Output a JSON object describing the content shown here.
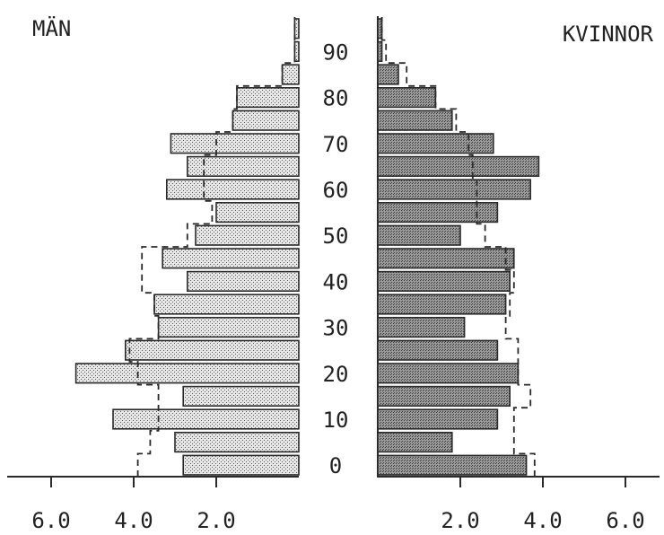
{
  "chart_data": {
    "type": "bar",
    "subtype": "population-pyramid",
    "left_label": "MÄN",
    "right_label": "KVINNOR",
    "age_tick_labels": [
      "0",
      "10",
      "20",
      "30",
      "40",
      "50",
      "60",
      "70",
      "80",
      "90"
    ],
    "left_axis_ticks": [
      "6.0",
      "4.0",
      "2.0"
    ],
    "right_axis_ticks": [
      "2.0",
      "4.0",
      "6.0"
    ],
    "xlim": [
      0,
      7
    ],
    "age_groups": [
      0,
      5,
      10,
      15,
      20,
      25,
      30,
      35,
      40,
      45,
      50,
      55,
      60,
      65,
      70,
      75,
      80,
      85,
      90,
      95
    ],
    "series": [
      {
        "name": "MÄN",
        "values": [
          2.8,
          3.0,
          4.5,
          2.8,
          5.4,
          4.2,
          3.4,
          3.5,
          2.7,
          3.3,
          2.5,
          2.0,
          3.2,
          2.7,
          3.1,
          1.6,
          1.5,
          0.4,
          0.1,
          0.1
        ],
        "reference": [
          3.9,
          3.6,
          3.4,
          3.4,
          3.9,
          4.1,
          3.4,
          3.5,
          3.8,
          3.8,
          2.7,
          2.1,
          2.3,
          2.3,
          2.0,
          1.6,
          1.5,
          0.4,
          0.1,
          0.1
        ]
      },
      {
        "name": "KVINNOR",
        "values": [
          3.6,
          1.8,
          2.9,
          3.2,
          3.4,
          2.9,
          2.1,
          3.1,
          3.2,
          3.3,
          2.0,
          2.9,
          3.7,
          3.9,
          2.8,
          1.8,
          1.4,
          0.5,
          0.1,
          0.1
        ],
        "reference": [
          3.8,
          3.3,
          3.3,
          3.7,
          3.4,
          3.4,
          3.1,
          3.2,
          3.3,
          3.1,
          2.6,
          2.4,
          2.4,
          2.3,
          2.2,
          1.9,
          1.4,
          0.7,
          0.2,
          0.1
        ]
      }
    ]
  },
  "colors": {
    "male_fill": "#dadada",
    "female_fill": "#8a8a8a",
    "outline": "#2a2a2a",
    "reference_line": "#2a2a2a"
  }
}
